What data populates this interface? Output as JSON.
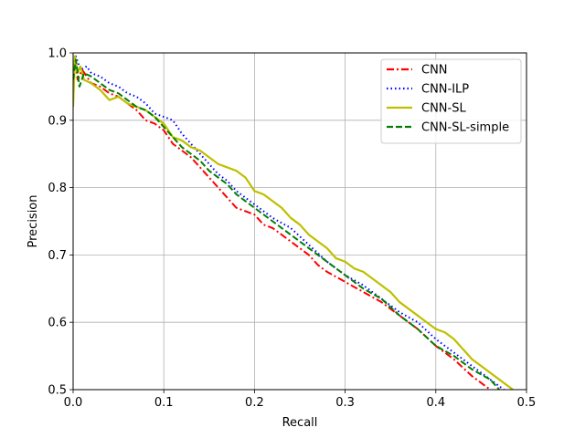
{
  "chart_data": {
    "type": "line",
    "xlabel": "Recall",
    "ylabel": "Precision",
    "xlim": [
      0.0,
      0.5
    ],
    "ylim": [
      0.5,
      1.0
    ],
    "xticks": [
      "0.0",
      "0.1",
      "0.2",
      "0.3",
      "0.4",
      "0.5"
    ],
    "yticks": [
      "0.5",
      "0.6",
      "0.7",
      "0.8",
      "0.9",
      "1.0"
    ],
    "grid": true,
    "legend_position": "top-right",
    "series": [
      {
        "name": "CNN",
        "color": "#ff0000",
        "style": "dashdot",
        "points": [
          [
            0.0,
            0.95
          ],
          [
            0.002,
            0.99
          ],
          [
            0.005,
            0.96
          ],
          [
            0.01,
            0.975
          ],
          [
            0.02,
            0.955
          ],
          [
            0.03,
            0.95
          ],
          [
            0.04,
            0.94
          ],
          [
            0.05,
            0.935
          ],
          [
            0.06,
            0.925
          ],
          [
            0.07,
            0.915
          ],
          [
            0.08,
            0.9
          ],
          [
            0.09,
            0.895
          ],
          [
            0.1,
            0.885
          ],
          [
            0.11,
            0.865
          ],
          [
            0.12,
            0.855
          ],
          [
            0.13,
            0.845
          ],
          [
            0.14,
            0.83
          ],
          [
            0.15,
            0.815
          ],
          [
            0.16,
            0.8
          ],
          [
            0.17,
            0.785
          ],
          [
            0.18,
            0.77
          ],
          [
            0.2,
            0.76
          ],
          [
            0.21,
            0.745
          ],
          [
            0.22,
            0.74
          ],
          [
            0.24,
            0.72
          ],
          [
            0.26,
            0.7
          ],
          [
            0.27,
            0.685
          ],
          [
            0.28,
            0.675
          ],
          [
            0.3,
            0.66
          ],
          [
            0.32,
            0.645
          ],
          [
            0.34,
            0.63
          ],
          [
            0.36,
            0.61
          ],
          [
            0.38,
            0.59
          ],
          [
            0.4,
            0.565
          ],
          [
            0.42,
            0.545
          ],
          [
            0.44,
            0.52
          ],
          [
            0.46,
            0.5
          ]
        ]
      },
      {
        "name": "CNN-ILP",
        "color": "#0000ff",
        "style": "dotted",
        "points": [
          [
            0.0,
            0.97
          ],
          [
            0.003,
            0.995
          ],
          [
            0.008,
            0.975
          ],
          [
            0.015,
            0.98
          ],
          [
            0.02,
            0.97
          ],
          [
            0.03,
            0.965
          ],
          [
            0.04,
            0.955
          ],
          [
            0.05,
            0.95
          ],
          [
            0.06,
            0.94
          ],
          [
            0.07,
            0.935
          ],
          [
            0.08,
            0.925
          ],
          [
            0.09,
            0.91
          ],
          [
            0.1,
            0.905
          ],
          [
            0.11,
            0.9
          ],
          [
            0.12,
            0.88
          ],
          [
            0.13,
            0.865
          ],
          [
            0.14,
            0.85
          ],
          [
            0.15,
            0.835
          ],
          [
            0.16,
            0.82
          ],
          [
            0.17,
            0.81
          ],
          [
            0.18,
            0.795
          ],
          [
            0.2,
            0.775
          ],
          [
            0.22,
            0.755
          ],
          [
            0.24,
            0.74
          ],
          [
            0.26,
            0.715
          ],
          [
            0.28,
            0.69
          ],
          [
            0.3,
            0.67
          ],
          [
            0.32,
            0.655
          ],
          [
            0.34,
            0.635
          ],
          [
            0.36,
            0.615
          ],
          [
            0.38,
            0.6
          ],
          [
            0.4,
            0.575
          ],
          [
            0.42,
            0.555
          ],
          [
            0.44,
            0.535
          ],
          [
            0.46,
            0.515
          ],
          [
            0.475,
            0.5
          ]
        ]
      },
      {
        "name": "CNN-SL",
        "color": "#bfbf00",
        "style": "solid",
        "points": [
          [
            0.0,
            0.92
          ],
          [
            0.002,
            0.995
          ],
          [
            0.005,
            0.97
          ],
          [
            0.008,
            0.98
          ],
          [
            0.012,
            0.96
          ],
          [
            0.02,
            0.955
          ],
          [
            0.03,
            0.945
          ],
          [
            0.04,
            0.93
          ],
          [
            0.05,
            0.935
          ],
          [
            0.06,
            0.925
          ],
          [
            0.07,
            0.92
          ],
          [
            0.08,
            0.915
          ],
          [
            0.09,
            0.905
          ],
          [
            0.1,
            0.895
          ],
          [
            0.11,
            0.875
          ],
          [
            0.12,
            0.87
          ],
          [
            0.13,
            0.86
          ],
          [
            0.14,
            0.855
          ],
          [
            0.15,
            0.845
          ],
          [
            0.16,
            0.835
          ],
          [
            0.17,
            0.83
          ],
          [
            0.18,
            0.825
          ],
          [
            0.19,
            0.815
          ],
          [
            0.2,
            0.795
          ],
          [
            0.21,
            0.79
          ],
          [
            0.22,
            0.78
          ],
          [
            0.23,
            0.77
          ],
          [
            0.24,
            0.755
          ],
          [
            0.25,
            0.745
          ],
          [
            0.26,
            0.73
          ],
          [
            0.27,
            0.72
          ],
          [
            0.28,
            0.71
          ],
          [
            0.29,
            0.695
          ],
          [
            0.3,
            0.69
          ],
          [
            0.31,
            0.68
          ],
          [
            0.32,
            0.675
          ],
          [
            0.33,
            0.665
          ],
          [
            0.34,
            0.655
          ],
          [
            0.35,
            0.645
          ],
          [
            0.36,
            0.63
          ],
          [
            0.37,
            0.62
          ],
          [
            0.38,
            0.61
          ],
          [
            0.39,
            0.6
          ],
          [
            0.4,
            0.59
          ],
          [
            0.41,
            0.585
          ],
          [
            0.42,
            0.575
          ],
          [
            0.43,
            0.56
          ],
          [
            0.44,
            0.545
          ],
          [
            0.45,
            0.535
          ],
          [
            0.46,
            0.525
          ],
          [
            0.47,
            0.515
          ],
          [
            0.485,
            0.5
          ]
        ]
      },
      {
        "name": "CNN-SL-simple",
        "color": "#008000",
        "style": "dashed",
        "points": [
          [
            0.0,
            0.96
          ],
          [
            0.003,
            0.99
          ],
          [
            0.007,
            0.95
          ],
          [
            0.012,
            0.97
          ],
          [
            0.02,
            0.965
          ],
          [
            0.03,
            0.955
          ],
          [
            0.04,
            0.945
          ],
          [
            0.05,
            0.94
          ],
          [
            0.06,
            0.93
          ],
          [
            0.07,
            0.92
          ],
          [
            0.08,
            0.915
          ],
          [
            0.09,
            0.905
          ],
          [
            0.1,
            0.89
          ],
          [
            0.11,
            0.875
          ],
          [
            0.12,
            0.86
          ],
          [
            0.13,
            0.85
          ],
          [
            0.14,
            0.84
          ],
          [
            0.15,
            0.825
          ],
          [
            0.16,
            0.815
          ],
          [
            0.17,
            0.805
          ],
          [
            0.18,
            0.79
          ],
          [
            0.2,
            0.77
          ],
          [
            0.22,
            0.75
          ],
          [
            0.24,
            0.73
          ],
          [
            0.26,
            0.71
          ],
          [
            0.28,
            0.69
          ],
          [
            0.3,
            0.67
          ],
          [
            0.32,
            0.65
          ],
          [
            0.34,
            0.635
          ],
          [
            0.36,
            0.61
          ],
          [
            0.38,
            0.59
          ],
          [
            0.4,
            0.565
          ],
          [
            0.42,
            0.55
          ],
          [
            0.44,
            0.53
          ],
          [
            0.46,
            0.515
          ],
          [
            0.47,
            0.5
          ]
        ]
      }
    ]
  }
}
